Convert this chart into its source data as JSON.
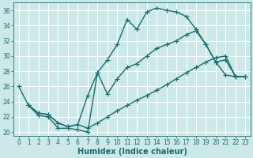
{
  "bg_color": "#cce8e8",
  "grid_color": "#ffffff",
  "line_color": "#1a6b6b",
  "xlabel": "Humidex (Indice chaleur)",
  "ylim": [
    19.5,
    37.0
  ],
  "xlim": [
    -0.5,
    23.5
  ],
  "yticks": [
    20,
    22,
    24,
    26,
    28,
    30,
    32,
    34,
    36
  ],
  "xticks": [
    0,
    1,
    2,
    3,
    4,
    5,
    6,
    7,
    8,
    9,
    10,
    11,
    12,
    13,
    14,
    15,
    16,
    17,
    18,
    19,
    20,
    21,
    22,
    23
  ],
  "line1_x": [
    0,
    1,
    2,
    3,
    4,
    5,
    6,
    7,
    8,
    9,
    10,
    11,
    12,
    13,
    14,
    15,
    16,
    17,
    18,
    19,
    20,
    21,
    22,
    23
  ],
  "line1_y": [
    26.0,
    23.5,
    22.2,
    22.0,
    20.5,
    20.5,
    20.3,
    20.0,
    27.8,
    29.5,
    31.5,
    34.8,
    33.5,
    35.8,
    36.3,
    36.0,
    35.8,
    35.2,
    33.5,
    31.5,
    29.2,
    27.5,
    27.3,
    27.3
  ],
  "line2_x": [
    1,
    2,
    3,
    4,
    5,
    6,
    7,
    8,
    9,
    10,
    11,
    12,
    13,
    14,
    15,
    16,
    17,
    18,
    19,
    20,
    21,
    22,
    23
  ],
  "line2_y": [
    23.5,
    22.5,
    22.3,
    21.2,
    20.7,
    21.0,
    24.8,
    27.8,
    25.0,
    27.0,
    28.5,
    29.0,
    30.0,
    31.0,
    31.5,
    32.0,
    32.8,
    33.3,
    31.5,
    29.2,
    29.5,
    27.3,
    27.3
  ],
  "line3_x": [
    1,
    2,
    3,
    4,
    5,
    6,
    7,
    8,
    9,
    10,
    11,
    12,
    13,
    14,
    15,
    16,
    17,
    18,
    19,
    20,
    21,
    22,
    23
  ],
  "line3_y": [
    23.5,
    22.5,
    22.3,
    21.2,
    20.7,
    21.0,
    20.5,
    21.2,
    22.0,
    22.8,
    23.5,
    24.2,
    24.8,
    25.5,
    26.2,
    27.0,
    27.8,
    28.5,
    29.2,
    29.8,
    30.0,
    27.3,
    27.3
  ],
  "marker": "+",
  "marker_size": 4,
  "line_width": 1.0,
  "tick_fontsize": 5.5,
  "label_fontsize": 7
}
